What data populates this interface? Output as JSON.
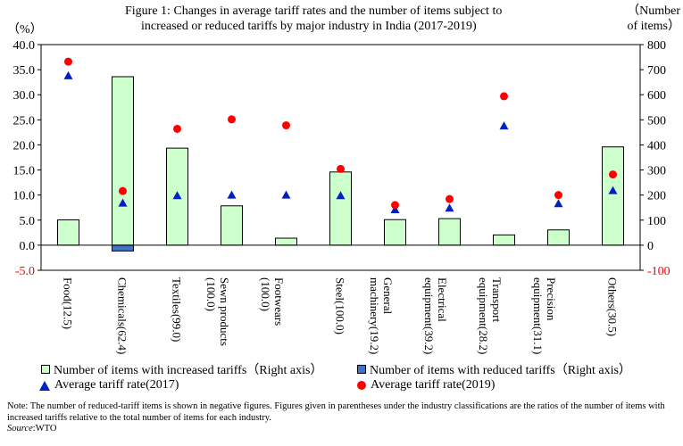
{
  "title_line1": "Figure 1: Changes in average tariff rates and the number of items subject to",
  "title_line2": "increased or reduced tariffs by major industry in India (2017-2019)",
  "left_unit": "（%）",
  "right_unit_line1": "（Number",
  "right_unit_line2": "of items）",
  "note": "Note: The number of reduced-tariff items is shown in negative figures. Figures given in parentheses under the industry classifications are the ratios of the number of items with increased tariffs relative to the total number of items for each industry.",
  "source_label": "Source",
  "source_value": ":WTO",
  "colors": {
    "increased": "#ccffcc",
    "reduced": "#4472c4",
    "rate2017": "#0020c0",
    "rate2019": "#ff0000",
    "negative_tick": "#ff0000"
  },
  "chart_data": {
    "type": "bar",
    "categories": [
      "Food(12.5)",
      "Chemicals(62.4)",
      "Textiles(99.0)",
      "Sewn products (100.0)",
      "Footwears (100.0)",
      "Steel(100.0)",
      "General machinery(19.2)",
      "Electrical equipment(39.2)",
      "Transport equipment(28.2)",
      "Precision equipment(31.1)",
      "Others(30.5)"
    ],
    "category_lines": [
      [
        "Food(12.5)"
      ],
      [
        "Chemicals(62.4)"
      ],
      [
        "Textiles(99.0)"
      ],
      [
        "Sewn products",
        "(100.0)"
      ],
      [
        "Footwears",
        "(100.0)"
      ],
      [
        "Steel(100.0)"
      ],
      [
        "General",
        "machinery(19.2)"
      ],
      [
        "Electrical",
        "equipment(39.2)"
      ],
      [
        "Transport",
        "equipment(28.2)"
      ],
      [
        "Precision",
        "equipment(31.1)"
      ],
      [
        "Others(30.5)"
      ]
    ],
    "series": [
      {
        "name": "Number of items with increased tariffs（Right axis）",
        "type": "bar",
        "axis": "right",
        "values": [
          101,
          672,
          387,
          157,
          28,
          292,
          102,
          106,
          41,
          61,
          392
        ]
      },
      {
        "name": "Number of items with reduced tariffs（Right axis）",
        "type": "bar",
        "axis": "right",
        "values": [
          0,
          -23,
          0,
          0,
          0,
          0,
          0,
          0,
          0,
          0,
          0
        ]
      },
      {
        "name": "Average tariff rate(2017)",
        "type": "scatter",
        "marker": "triangle",
        "axis": "left",
        "values": [
          33.8,
          8.4,
          9.9,
          10.0,
          10.0,
          9.9,
          7.1,
          7.4,
          23.8,
          8.3,
          10.9
        ]
      },
      {
        "name": "Average tariff rate(2019)",
        "type": "scatter",
        "marker": "circle",
        "axis": "left",
        "values": [
          36.6,
          10.8,
          23.2,
          25.1,
          23.9,
          15.2,
          8.0,
          9.2,
          29.7,
          10.0,
          14.1
        ]
      }
    ],
    "left_axis": {
      "min": -5,
      "max": 40,
      "step": 5,
      "ticks": [
        "-5.0",
        "0.0",
        "5.0",
        "10.0",
        "15.0",
        "20.0",
        "25.0",
        "30.0",
        "35.0",
        "40.0"
      ]
    },
    "right_axis": {
      "min": -100,
      "max": 800,
      "step": 100,
      "ticks": [
        "-100",
        "0",
        "100",
        "200",
        "300",
        "400",
        "500",
        "600",
        "700",
        "800"
      ]
    },
    "grid": false,
    "legend_position": "bottom"
  }
}
